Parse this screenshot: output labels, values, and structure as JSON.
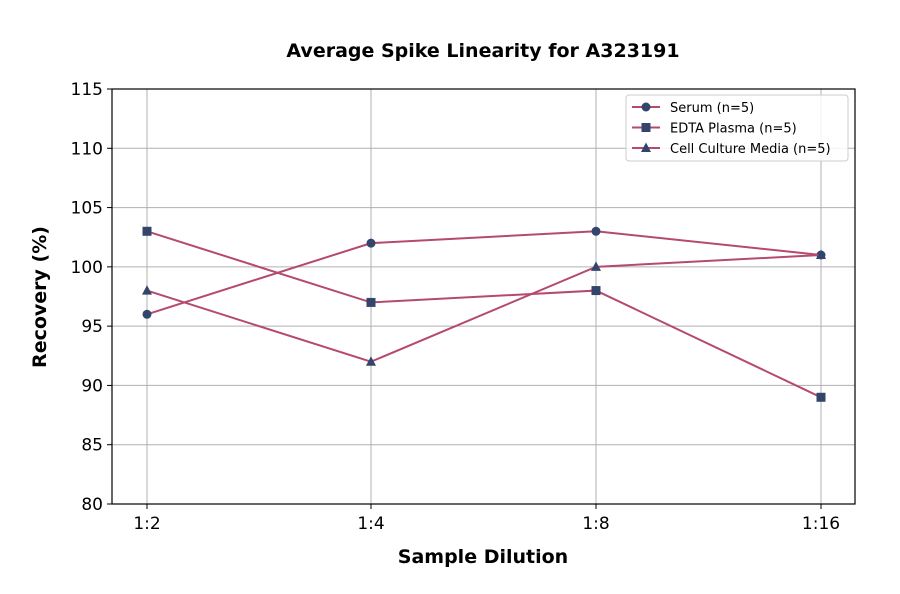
{
  "chart_data": {
    "type": "line",
    "title": "Average Spike Linearity for A323191",
    "xlabel": "Sample Dilution",
    "ylabel": "Recovery (%)",
    "categories": [
      "1:2",
      "1:4",
      "1:8",
      "1:16"
    ],
    "ylim": [
      80,
      115
    ],
    "yticks": [
      80,
      85,
      90,
      95,
      100,
      105,
      110,
      115
    ],
    "grid": true,
    "legend": "top-right",
    "line_color": "#b5496f",
    "marker_color": "#34456b",
    "series": [
      {
        "name": "Serum (n=5)",
        "marker": "circle",
        "values": [
          96,
          102,
          103,
          101
        ]
      },
      {
        "name": "EDTA Plasma (n=5)",
        "marker": "square",
        "values": [
          103,
          97,
          98,
          89
        ]
      },
      {
        "name": "Cell Culture Media (n=5)",
        "marker": "triangle",
        "values": [
          98,
          92,
          100,
          101
        ]
      }
    ]
  }
}
